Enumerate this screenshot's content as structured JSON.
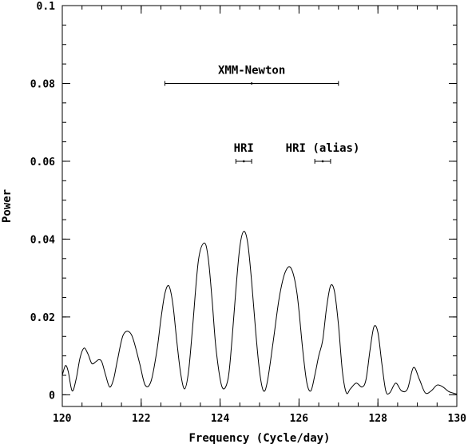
{
  "chart_data": {
    "type": "line",
    "xlabel": "Frequency (Cycle/day)",
    "ylabel": "Power",
    "xlim": [
      120,
      130
    ],
    "ylim": [
      -0.003,
      0.1
    ],
    "x_ticks": [
      120,
      122,
      124,
      126,
      128,
      130
    ],
    "x_tick_labels": [
      "120",
      "122",
      "124",
      "126",
      "128",
      "130"
    ],
    "y_ticks": [
      0,
      0.02,
      0.04,
      0.06,
      0.08,
      0.1
    ],
    "y_tick_labels": [
      "0",
      "0.02",
      "0.04",
      "0.06",
      "0.08",
      "0.1"
    ],
    "x_minor_step": 0.5,
    "y_minor_step": 0.005,
    "grid": false,
    "curve": {
      "x": [
        120.0,
        120.08,
        120.15,
        120.25,
        120.35,
        120.45,
        120.55,
        120.65,
        120.75,
        120.85,
        120.92,
        121.0,
        121.1,
        121.2,
        121.3,
        121.4,
        121.55,
        121.75,
        121.95,
        122.1,
        122.25,
        122.4,
        122.5,
        122.6,
        122.7,
        122.8,
        122.9,
        123.0,
        123.1,
        123.2,
        123.3,
        123.45,
        123.6,
        123.7,
        123.8,
        123.9,
        124.05,
        124.2,
        124.3,
        124.4,
        124.5,
        124.6,
        124.7,
        124.8,
        124.9,
        125.0,
        125.1,
        125.2,
        125.35,
        125.5,
        125.65,
        125.8,
        125.95,
        126.1,
        126.2,
        126.3,
        126.4,
        126.5,
        126.6,
        126.7,
        126.8,
        126.9,
        127.0,
        127.1,
        127.2,
        127.3,
        127.45,
        127.6,
        127.7,
        127.8,
        127.9,
        128.0,
        128.1,
        128.2,
        128.3,
        128.45,
        128.6,
        128.75,
        128.9,
        129.05,
        129.2,
        129.35,
        129.5,
        129.65,
        129.8,
        130.0
      ],
      "y": [
        0.005,
        0.0075,
        0.006,
        0.001,
        0.004,
        0.0095,
        0.012,
        0.0105,
        0.008,
        0.0085,
        0.009,
        0.0085,
        0.005,
        0.002,
        0.004,
        0.009,
        0.0155,
        0.0155,
        0.0085,
        0.0025,
        0.0035,
        0.0115,
        0.0195,
        0.026,
        0.028,
        0.0235,
        0.014,
        0.0055,
        0.0015,
        0.006,
        0.017,
        0.0345,
        0.039,
        0.035,
        0.024,
        0.0115,
        0.002,
        0.004,
        0.014,
        0.027,
        0.038,
        0.042,
        0.039,
        0.029,
        0.0165,
        0.006,
        0.001,
        0.0035,
        0.014,
        0.025,
        0.0315,
        0.0325,
        0.026,
        0.011,
        0.003,
        0.001,
        0.005,
        0.01,
        0.014,
        0.0225,
        0.028,
        0.0265,
        0.018,
        0.006,
        0.0005,
        0.0015,
        0.003,
        0.002,
        0.004,
        0.0115,
        0.0175,
        0.016,
        0.008,
        0.001,
        0.0005,
        0.003,
        0.001,
        0.0015,
        0.007,
        0.004,
        0.0005,
        0.001,
        0.0025,
        0.002,
        0.0008,
        0.0002
      ]
    },
    "annotations": [
      {
        "label": "XMM-Newton",
        "center": 124.8,
        "low": 122.6,
        "high": 127.0,
        "y": 0.08
      },
      {
        "label": "HRI",
        "center": 124.6,
        "low": 124.4,
        "high": 124.8,
        "y": 0.06
      },
      {
        "label": "HRI (alias)",
        "center": 126.6,
        "low": 126.4,
        "high": 126.8,
        "y": 0.06
      }
    ]
  }
}
